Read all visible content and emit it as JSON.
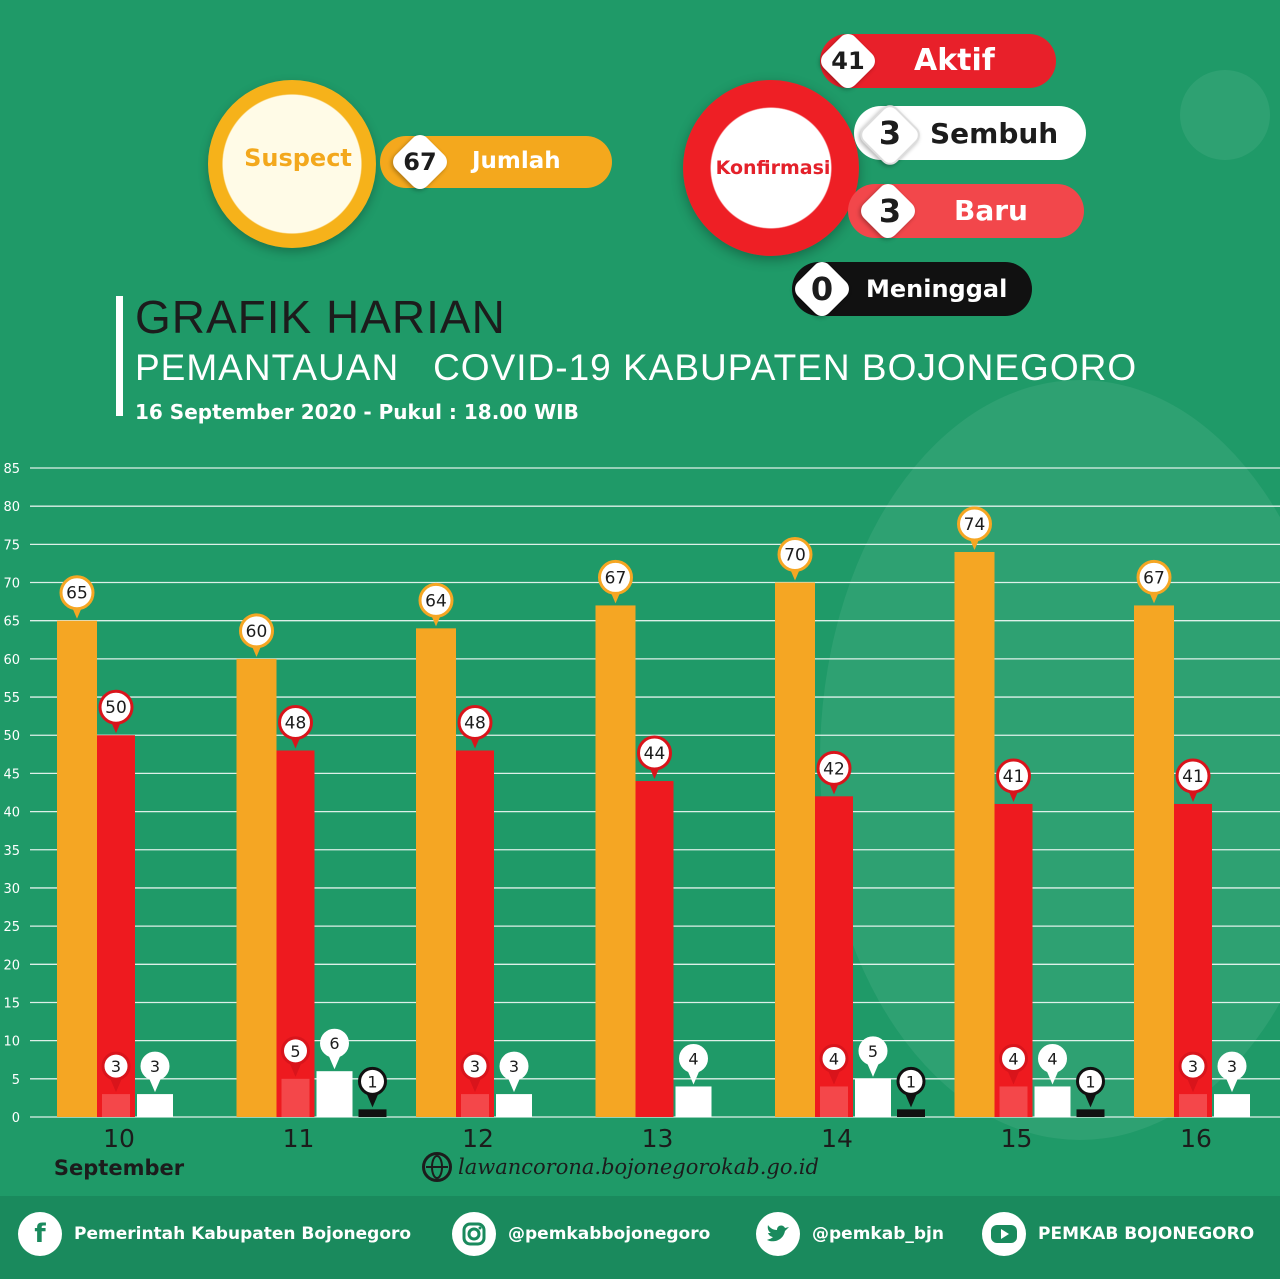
{
  "header": {
    "suspect": {
      "label": "Suspect",
      "value": "67",
      "value_label": "Jumlah",
      "color": "#f4a81d"
    },
    "konfirmasi": {
      "label": "Konfirmasi",
      "items": [
        {
          "value": "41",
          "label": "Aktif",
          "color": "#e8202a"
        },
        {
          "value": "3",
          "label": "Sembuh",
          "color": "#ffffff"
        },
        {
          "value": "3",
          "label": "Baru",
          "color": "#f2474b"
        },
        {
          "value": "0",
          "label": "Meninggal",
          "color": "#111111"
        }
      ]
    }
  },
  "title": {
    "line1": "GRAFIK HARIAN",
    "line2": "PEMANTAUAN   COVID-19 KABUPATEN BOJONEGORO",
    "line3": "16 September 2020 - Pukul : 18.00 WIB"
  },
  "chart_data": {
    "type": "bar",
    "categories": [
      "10",
      "11",
      "12",
      "13",
      "14",
      "15",
      "16"
    ],
    "month_label": "September",
    "ylim": [
      0,
      85
    ],
    "yticks": [
      0,
      5,
      10,
      15,
      20,
      25,
      30,
      35,
      40,
      45,
      50,
      55,
      60,
      65,
      70,
      75,
      80,
      85
    ],
    "grid": true,
    "series": [
      {
        "key": "suspect",
        "color": "#f5a623",
        "values": [
          65,
          60,
          64,
          67,
          70,
          74,
          67
        ]
      },
      {
        "key": "aktif",
        "color": "#ee1a1f",
        "values": [
          50,
          48,
          48,
          44,
          42,
          41,
          41
        ]
      },
      {
        "key": "baru",
        "color": "#f4474a",
        "values": [
          3,
          5,
          3,
          null,
          4,
          4,
          3
        ]
      },
      {
        "key": "sembuh",
        "color": "#ffffff",
        "values": [
          3,
          6,
          3,
          4,
          5,
          4,
          3
        ]
      },
      {
        "key": "meninggal",
        "color": "#111111",
        "values": [
          null,
          1,
          null,
          null,
          1,
          1,
          null
        ]
      }
    ]
  },
  "website": "lawancorona.bojonegorokab.go.id",
  "footer": [
    {
      "icon": "facebook-icon",
      "label": "Pemerintah Kabupaten Bojonegoro"
    },
    {
      "icon": "instagram-icon",
      "label": "@pemkabbojonegoro"
    },
    {
      "icon": "twitter-icon",
      "label": "@pemkab_bjn"
    },
    {
      "icon": "youtube-icon",
      "label": "PEMKAB BOJONEGORO"
    }
  ]
}
